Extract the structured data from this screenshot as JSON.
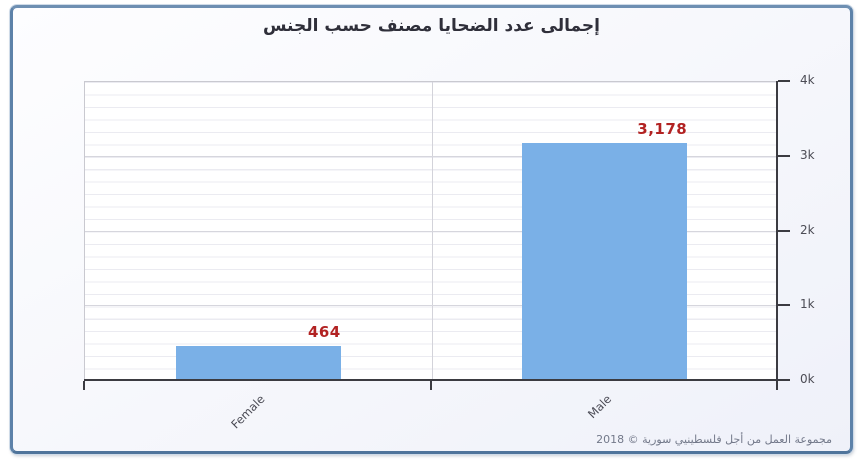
{
  "title": "إجمالى عدد الضحايا مصنف حسب الجنس",
  "footer": "مجموعة العمل من أجل فلسطينيي سورية © 2018",
  "chart_data": {
    "type": "bar",
    "title": "إجمالى عدد الضحايا مصنف حسب الجنس",
    "categories": [
      "Female",
      "Male"
    ],
    "values": [
      464,
      3178
    ],
    "value_labels": [
      "464",
      "3,178"
    ],
    "y_ticks": [
      "0k",
      "1k",
      "2k",
      "3k",
      "4k"
    ],
    "ylim": [
      0,
      4000
    ],
    "xlabel": "",
    "ylabel": "",
    "y_axis_position": "right",
    "grid": "on",
    "legend": "none",
    "bar_color": "#7ab0e7",
    "value_label_color": "#b22222",
    "source_note": "مجموعة العمل من أجل فلسطينيي سورية © 2018"
  }
}
